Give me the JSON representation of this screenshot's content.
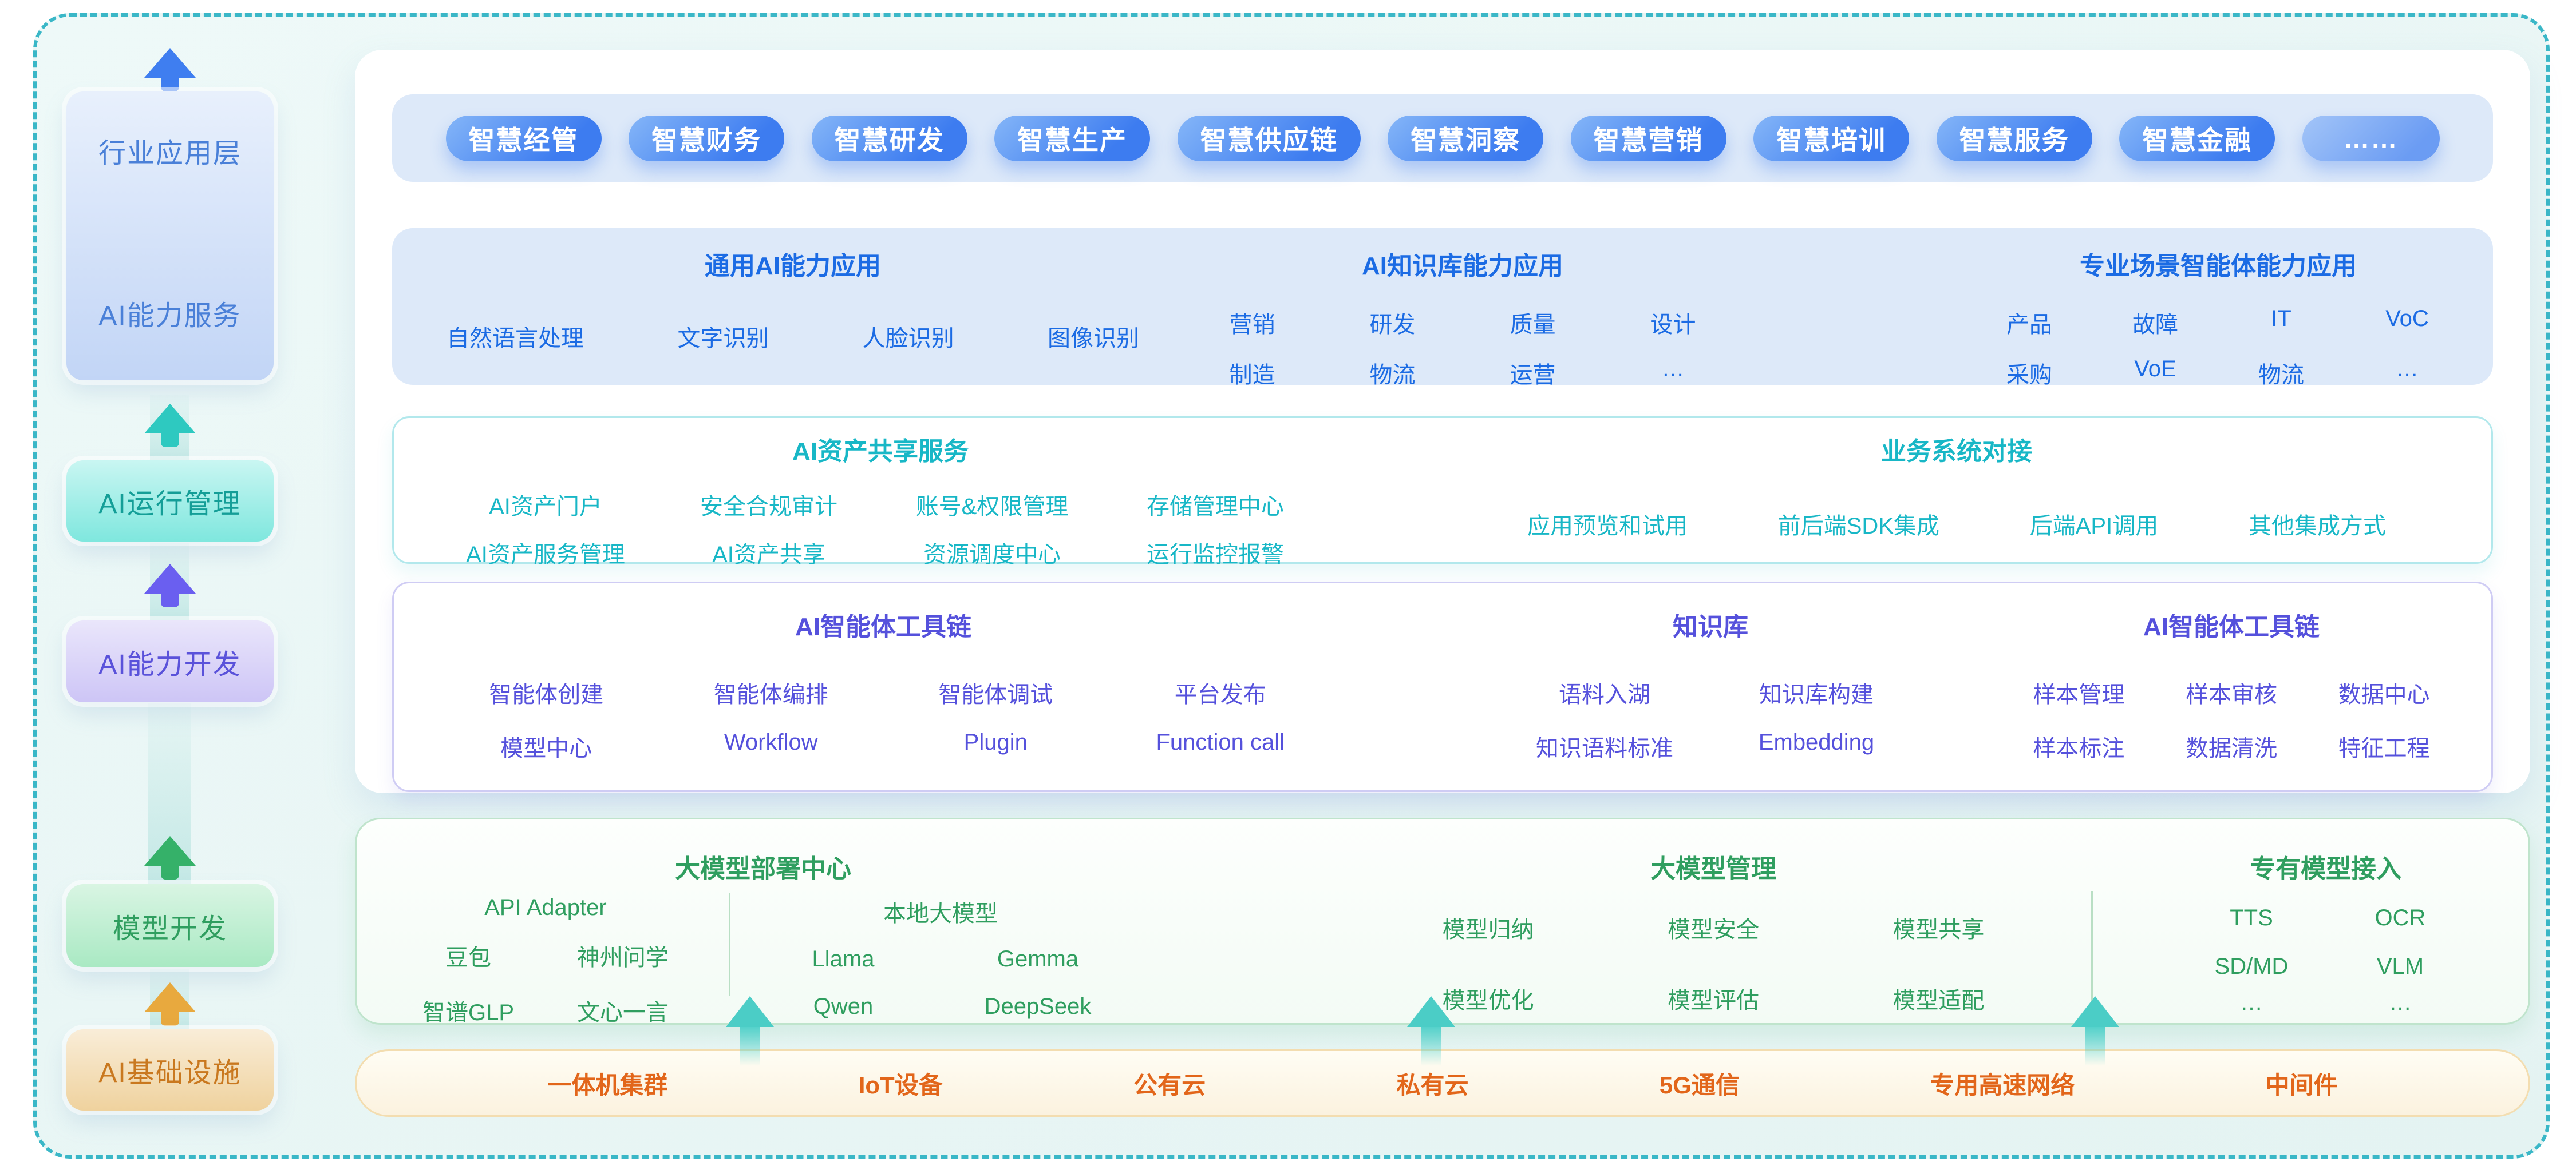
{
  "colors": {
    "frame_border": "#3ab7c7",
    "frame_bg": "#e9f6f5",
    "band_blue": "#dde9f9",
    "pill_gradient_from": "#85b6f8",
    "pill_gradient_to": "#3d7cf0",
    "blue_text": "#1b6be4",
    "teal_text": "#18b7c6",
    "purple_text": "#5551dc",
    "green_text": "#2f9e5f",
    "orange_text": "#e2661a",
    "teal_border": "#b2e8ec",
    "purple_border": "#cfccf4",
    "green_border": "#bfe4cc",
    "infra_bg": "#fbf2df",
    "infra_border": "#f3ddb0"
  },
  "sidebar": {
    "top_box": {
      "label_top": "行业应用层",
      "label_bottom": "AI能力服务"
    },
    "ops_label": "AI运行管理",
    "dev_label": "AI能力开发",
    "model_label": "模型开发",
    "infra_label": "AI基础设施"
  },
  "industry_apps": {
    "pills": [
      "智慧经管",
      "智慧财务",
      "智慧研发",
      "智慧生产",
      "智慧供应链",
      "智慧洞察",
      "智慧营销",
      "智慧培训",
      "智慧服务",
      "智慧金融",
      "……"
    ]
  },
  "capability": {
    "general": {
      "title": "通用AI能力应用",
      "items": [
        "自然语言处理",
        "文字识别",
        "人脸识别",
        "图像识别"
      ]
    },
    "knowledge": {
      "title": "AI知识库能力应用",
      "row1": [
        "营销",
        "研发",
        "质量",
        "设计"
      ],
      "row2": [
        "制造",
        "物流",
        "运营",
        "…"
      ]
    },
    "agent_scene": {
      "title": "专业场景智能体能力应用",
      "row1": [
        "产品",
        "故障",
        "IT",
        "VoC"
      ],
      "row2": [
        "采购",
        "VoE",
        "物流",
        "…"
      ]
    }
  },
  "ops": {
    "asset_share": {
      "title": "AI资产共享服务",
      "row1": [
        "AI资产门户",
        "安全合规审计",
        "账号&权限管理",
        "存储管理中心"
      ],
      "row2": [
        "AI资产服务管理",
        "AI资产共享",
        "资源调度中心",
        "运行监控报警"
      ]
    },
    "biz_connect": {
      "title": "业务系统对接",
      "items": [
        "应用预览和试用",
        "前后端SDK集成",
        "后端API调用",
        "其他集成方式"
      ]
    }
  },
  "dev": {
    "agent_tools": {
      "title": "AI智能体工具链",
      "row1": [
        "智能体创建",
        "智能体编排",
        "智能体调试",
        "平台发布"
      ],
      "row2": [
        "模型中心",
        "Workflow",
        "Plugin",
        "Function call"
      ]
    },
    "knowledge_base": {
      "title": "知识库",
      "row1": [
        "语料入湖",
        "知识库构建"
      ],
      "row2": [
        "知识语料标准",
        "Embedding"
      ]
    },
    "agent_tools_right": {
      "title": "AI智能体工具链",
      "row1": [
        "样本管理",
        "样本审核",
        "数据中心"
      ],
      "row2": [
        "样本标注",
        "数据清洗",
        "特征工程"
      ]
    }
  },
  "model": {
    "deploy": {
      "title": "大模型部署中心",
      "api_adapter": {
        "title": "API Adapter",
        "row1": [
          "豆包",
          "神州问学"
        ],
        "row2": [
          "智谱GLP",
          "文心一言"
        ]
      },
      "local": {
        "title": "本地大模型",
        "row1": [
          "Llama",
          "Gemma"
        ],
        "row2": [
          "Qwen",
          "DeepSeek"
        ]
      }
    },
    "manage": {
      "title": "大模型管理",
      "row1": [
        "模型归纳",
        "模型安全",
        "模型共享"
      ],
      "row2": [
        "模型优化",
        "模型评估",
        "模型适配"
      ]
    },
    "private": {
      "title": "专有模型接入",
      "row1": [
        "TTS",
        "OCR"
      ],
      "row2": [
        "SD/MD",
        "VLM"
      ],
      "row3": [
        "…",
        "…"
      ]
    }
  },
  "infrastructure": {
    "items": [
      "一体机集群",
      "IoT设备",
      "公有云",
      "私有云",
      "5G通信",
      "专用高速网络",
      "中间件"
    ]
  }
}
